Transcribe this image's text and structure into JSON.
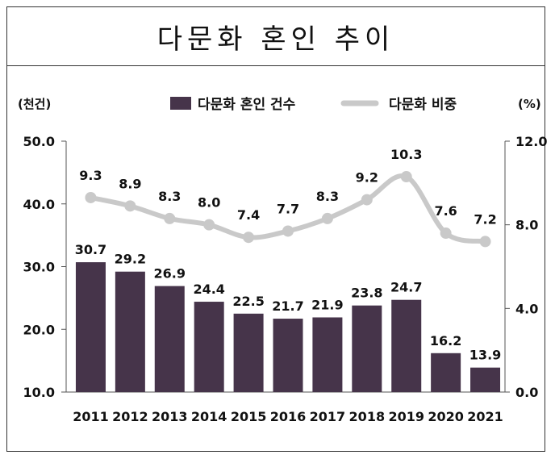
{
  "title": "다문화 혼인 추이",
  "colors": {
    "bar": "#46344a",
    "line": "#c9c9c9",
    "text": "#111111"
  },
  "chart_data": {
    "type": "bar",
    "categories": [
      "2011",
      "2012",
      "2013",
      "2014",
      "2015",
      "2016",
      "2017",
      "2018",
      "2019",
      "2020",
      "2021"
    ],
    "series": [
      {
        "name": "다문화 혼인 건수",
        "type": "bar",
        "axis": "left",
        "values": [
          30.7,
          29.2,
          26.9,
          24.4,
          22.5,
          21.7,
          21.9,
          23.8,
          24.7,
          16.2,
          13.9
        ]
      },
      {
        "name": "다문화 비중",
        "type": "line",
        "axis": "right",
        "values": [
          9.3,
          8.9,
          8.3,
          8.0,
          7.4,
          7.7,
          8.3,
          9.2,
          10.3,
          7.6,
          7.2
        ]
      }
    ],
    "left_axis": {
      "unit": "(천건)",
      "ylim": [
        10.0,
        50.0
      ],
      "ticks": [
        "10.0",
        "20.0",
        "30.0",
        "40.0",
        "50.0"
      ]
    },
    "right_axis": {
      "unit": "(%)",
      "ylim": [
        0.0,
        12.0
      ],
      "ticks": [
        "0.0",
        "4.0",
        "8.0",
        "12.0"
      ]
    },
    "legend_position": "top-center",
    "grid": false
  }
}
